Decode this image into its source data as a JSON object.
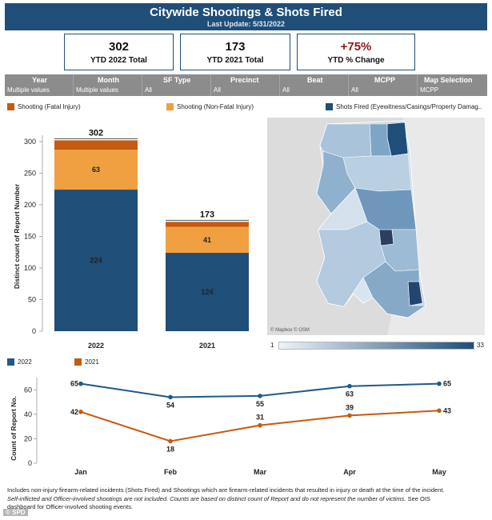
{
  "header": {
    "title": "Citywide Shootings & Shots Fired",
    "subtitle": "Last Update: 5/31/2022"
  },
  "kpis": [
    {
      "value": "302",
      "label": "YTD 2022 Total"
    },
    {
      "value": "173",
      "label": "YTD 2021 Total"
    },
    {
      "value": "+75%",
      "label": "YTD % Change"
    }
  ],
  "filters": [
    {
      "label": "Year",
      "value": "Multiple values"
    },
    {
      "label": "Month",
      "value": "Multiple values"
    },
    {
      "label": "SF Type",
      "value": "All"
    },
    {
      "label": "Precinct",
      "value": "All"
    },
    {
      "label": "Beat",
      "value": "All"
    },
    {
      "label": "MCPP",
      "value": "All"
    },
    {
      "label": "Map Selection",
      "value": "MCPP"
    }
  ],
  "legend_top": [
    {
      "label": "Shooting (Fatal Injury)",
      "color": "#c55a11"
    },
    {
      "label": "Shooting (Non-Fatal Injury)",
      "color": "#f0a040"
    },
    {
      "label": "Shots Fired (Eyewitness/Casings/Property Damag..",
      "color": "#1f4e79"
    }
  ],
  "map": {
    "attribution": "© Mapbox © OSM",
    "scale_min": "1",
    "scale_max": "33"
  },
  "legend_bottom": [
    {
      "label": "2022",
      "color": "#1f5a8a"
    },
    {
      "label": "2021",
      "color": "#c55a11"
    }
  ],
  "chart_data": [
    {
      "type": "bar",
      "stacked": true,
      "categories": [
        "2022",
        "2021"
      ],
      "series": [
        {
          "name": "Shots Fired (Eyewitness/Casings/Property Damag..",
          "values": [
            224,
            124
          ],
          "color": "#1f4e79"
        },
        {
          "name": "Shooting (Non-Fatal Injury)",
          "values": [
            63,
            41
          ],
          "color": "#f0a040"
        },
        {
          "name": "Shooting (Fatal Injury)",
          "values": [
            15,
            8
          ],
          "color": "#c55a11"
        }
      ],
      "totals": [
        302,
        173
      ],
      "segment_labels": [
        [
          "224",
          "63",
          ""
        ],
        [
          "124",
          "41",
          ""
        ]
      ],
      "ylabel": "Distinct count of Report Number",
      "yticks": [
        0,
        50,
        100,
        150,
        200,
        250,
        300
      ],
      "ylim": [
        0,
        310
      ]
    },
    {
      "type": "line",
      "categories": [
        "Jan",
        "Feb",
        "Mar",
        "Apr",
        "May"
      ],
      "series": [
        {
          "name": "2022",
          "values": [
            65,
            54,
            55,
            63,
            65
          ],
          "color": "#1f5a8a"
        },
        {
          "name": "2021",
          "values": [
            42,
            18,
            31,
            39,
            43
          ],
          "color": "#c55a11"
        }
      ],
      "ylabel": "Count of Report No.",
      "yticks": [
        0,
        20,
        40,
        60
      ],
      "ylim": [
        0,
        70
      ]
    }
  ],
  "footnote": {
    "line1": "Includes non-injury firearm-related incidents (Shots Fired) and Shootings which are firearm-related incidents that resulted in injury or death at the time of the incident.",
    "line2_italic": "Self-inflicted and Officer-involved shootings are not included. Counts are based on distinct count of Report and do not represent the number of victims.",
    "line2_rest": " See OIS",
    "line3": "dashboard for Officer-involved shooting events."
  },
  "credit": "© SPD"
}
